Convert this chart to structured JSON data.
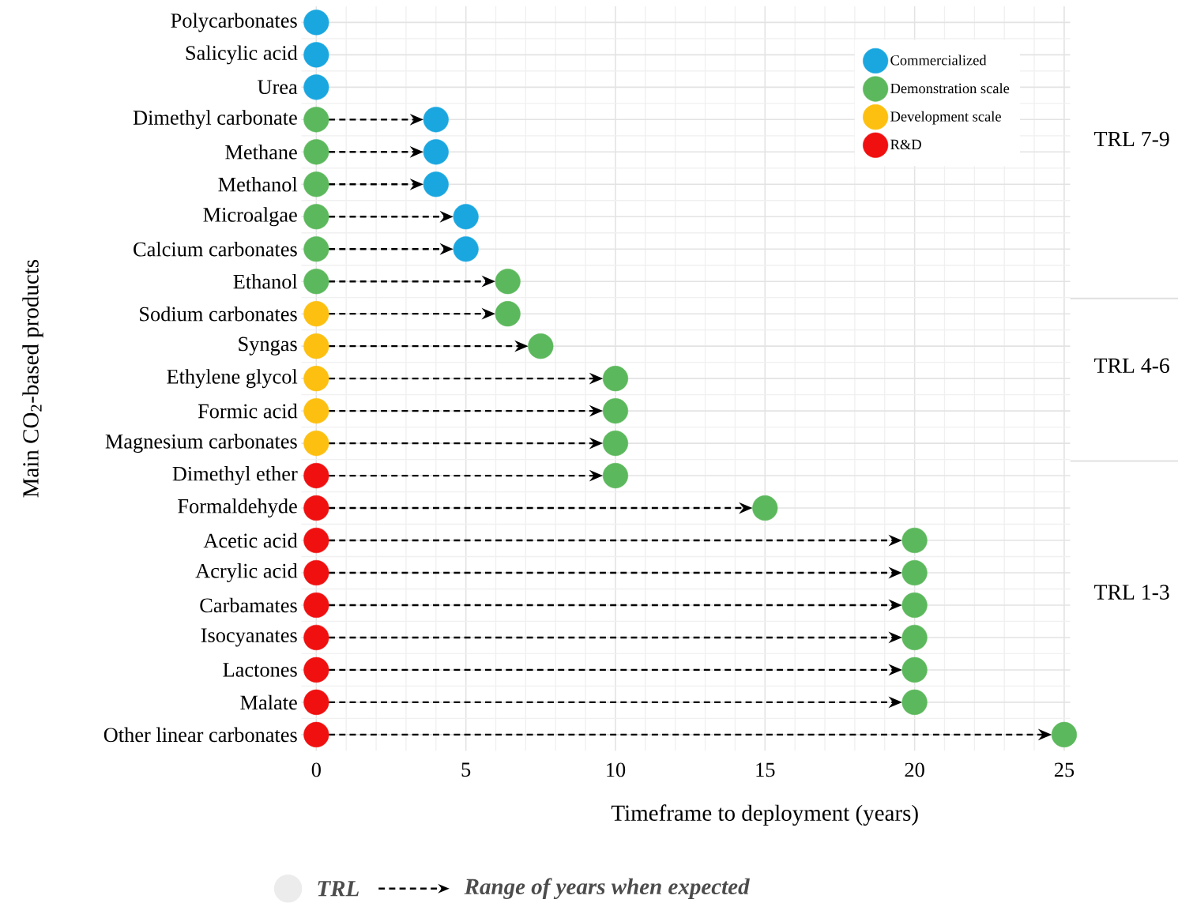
{
  "chart_data": {
    "type": "scatter",
    "orientation": "horizontal",
    "xlabel": "Timeframe to deployment (years)",
    "ylabel": "Main CO$_{2}$-based products",
    "categories": [
      "Polycarbonates",
      "Salicylic acid",
      "Urea",
      "Dimethyl carbonate",
      "Methane",
      "Methanol",
      "Microalgae",
      "Calcium carbonates",
      "Ethanol",
      "Sodium carbonates",
      "Syngas",
      "Ethylene glycol",
      "Formic acid",
      "Magnesium carbonates",
      "Dimethyl ether",
      "Formaldehyde",
      "Acetic acid",
      "Acrylic acid",
      "Carbamates",
      "Isocyanates",
      "Lactones",
      "Malate",
      "Other linear carbonates"
    ],
    "series": [
      {
        "name": "Commercialized",
        "color": "#1aa7e0",
        "values": [
          0,
          0,
          0,
          4,
          4,
          4,
          5,
          5,
          null,
          null,
          null,
          null,
          null,
          null,
          null,
          null,
          null,
          null,
          null,
          null,
          null,
          null,
          null
        ]
      },
      {
        "name": "Demonstration scale",
        "color": "#5cb85c",
        "values": [
          null,
          null,
          null,
          0,
          0,
          0,
          0,
          0,
          0,
          null,
          null,
          null,
          null,
          null,
          null,
          null,
          null,
          null,
          null,
          null,
          null,
          null,
          null
        ]
      },
      {
        "name": "Development scale",
        "color": "#fdc010",
        "values": [
          null,
          null,
          null,
          null,
          null,
          null,
          null,
          null,
          null,
          0,
          0,
          0,
          0,
          0,
          null,
          null,
          null,
          null,
          null,
          null,
          null,
          null,
          null
        ]
      },
      {
        "name": "R&D",
        "color": "#f01010",
        "values": [
          null,
          null,
          null,
          null,
          null,
          null,
          null,
          null,
          null,
          null,
          null,
          null,
          null,
          null,
          0,
          0,
          0,
          0,
          0,
          0,
          0,
          0,
          0
        ]
      },
      {
        "color": "#5cb85c",
        "values": [
          null,
          null,
          null,
          null,
          null,
          null,
          null,
          null,
          6.4,
          6.4,
          7.5,
          10,
          10,
          10,
          10,
          15,
          20,
          20,
          20,
          20,
          20,
          20,
          25
        ]
      }
    ],
    "xlim": [
      -0.5,
      25.2
    ],
    "xticks": [
      0,
      5,
      10,
      15,
      20,
      25
    ],
    "grid": true,
    "legend": "top right",
    "line_style": "dashed",
    "annotations": [
      "TRL",
      "Range of years when expected",
      "TRL 7-9",
      "TRL 4-6",
      "TRL 1-3"
    ]
  }
}
